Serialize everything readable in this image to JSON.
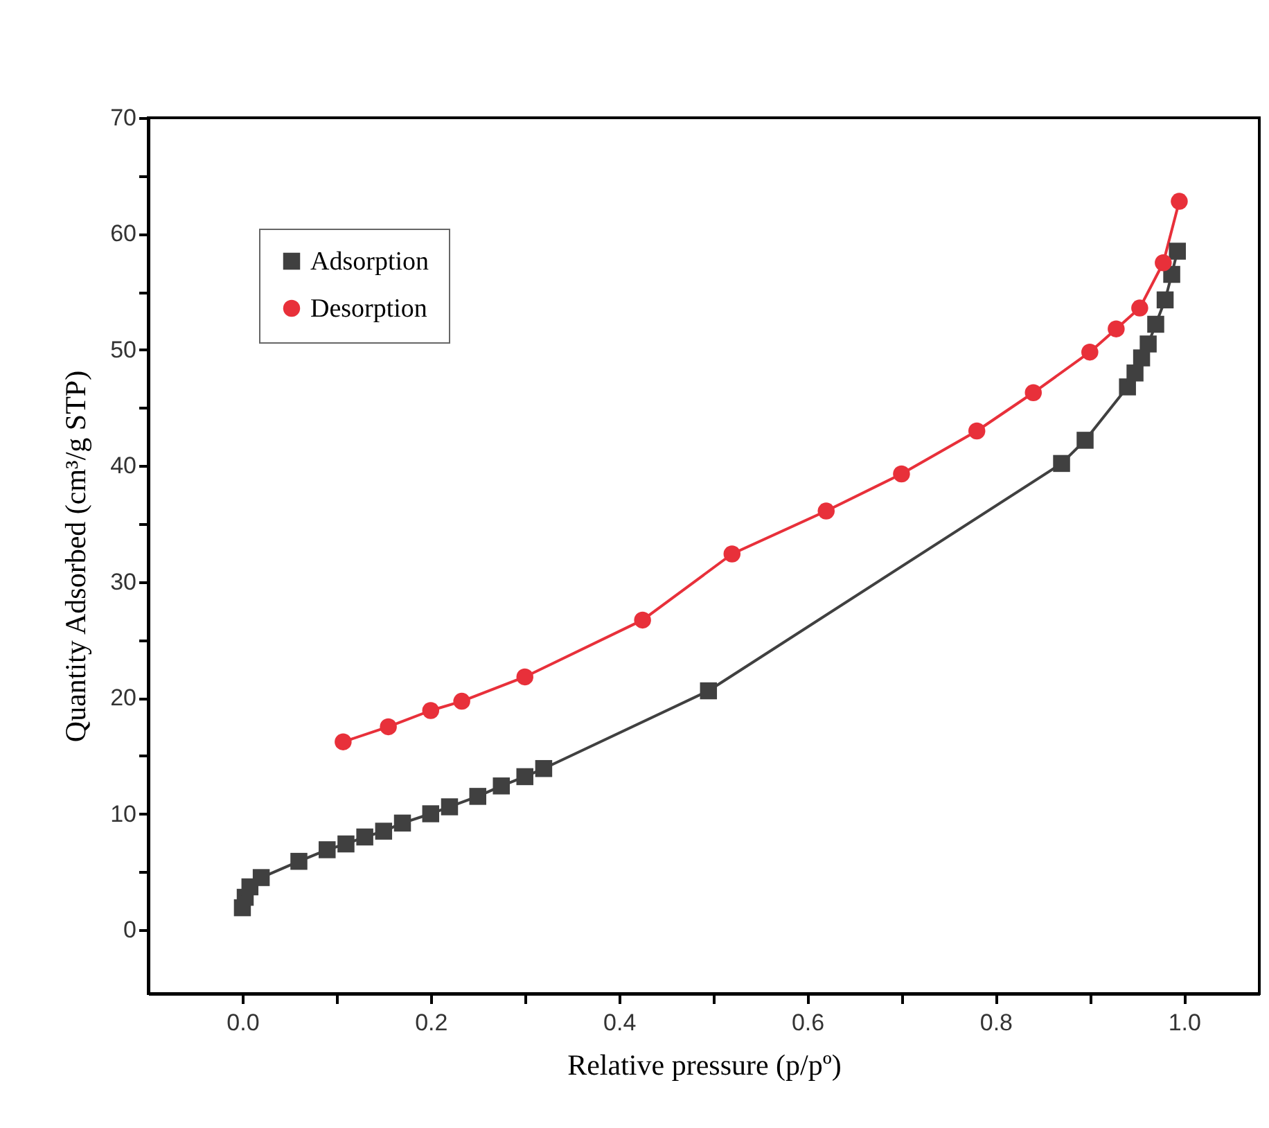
{
  "chart_data": {
    "type": "line",
    "xlabel": "Relative pressure (p/pº)",
    "ylabel": "Quantity Adsorbed (cm³/g STP)",
    "xlim": [
      -0.1,
      1.08
    ],
    "xticks": [
      {
        "value": 0,
        "label": "0.0"
      },
      0.2,
      0.4,
      0.6,
      0.8,
      {
        "value": 1,
        "label": "1.0"
      },
      {
        "value": 0.1,
        "label": null
      },
      {
        "value": 0.3,
        "label": null
      },
      {
        "value": 0.5,
        "label": null
      },
      {
        "value": 0.7,
        "label": null
      },
      {
        "value": 0.9,
        "label": null
      }
    ],
    "ylim": [
      -5.5,
      70
    ],
    "yticks": [
      0,
      10,
      20,
      30,
      40,
      50,
      60,
      70,
      {
        "value": 5,
        "label": null
      },
      {
        "value": 15,
        "label": null
      },
      {
        "value": 25,
        "label": null
      },
      {
        "value": 35,
        "label": null
      },
      {
        "value": 45,
        "label": null
      },
      {
        "value": 55,
        "label": null
      },
      {
        "value": 65,
        "label": null
      }
    ],
    "grid": false,
    "legend": "top left",
    "series": [
      {
        "name": "Adsorption",
        "color": "#404040",
        "marker": "square",
        "x": [
          0.0,
          0.003,
          0.008,
          0.02,
          0.06,
          0.09,
          0.11,
          0.13,
          0.15,
          0.17,
          0.2,
          0.22,
          0.25,
          0.275,
          0.3,
          0.32,
          0.495,
          0.87,
          0.895,
          0.94,
          0.948,
          0.955,
          0.962,
          0.97,
          0.98,
          0.987,
          0.993
        ],
        "values": [
          1.9,
          2.8,
          3.7,
          4.5,
          5.9,
          6.9,
          7.4,
          8.0,
          8.5,
          9.2,
          10.0,
          10.6,
          11.5,
          12.4,
          13.2,
          13.9,
          20.6,
          40.2,
          42.2,
          46.8,
          48.0,
          49.3,
          50.5,
          52.2,
          54.3,
          56.5,
          58.5
        ]
      },
      {
        "name": "Desorption",
        "color": "#e8303a",
        "marker": "circle",
        "x": [
          0.995,
          0.978,
          0.953,
          0.928,
          0.9,
          0.84,
          0.78,
          0.7,
          0.62,
          0.52,
          0.425,
          0.3,
          0.233,
          0.2,
          0.155,
          0.107
        ],
        "values": [
          62.8,
          57.5,
          53.6,
          51.8,
          49.8,
          46.3,
          43.0,
          39.3,
          36.1,
          32.4,
          26.7,
          21.8,
          19.7,
          18.9,
          17.5,
          16.2
        ]
      }
    ]
  }
}
